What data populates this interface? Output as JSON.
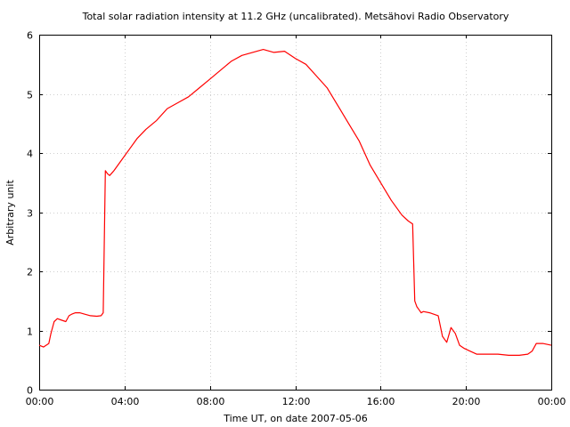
{
  "chart_data": {
    "type": "line",
    "title": "Total solar radiation intensity at 11.2 GHz (uncalibrated). Metsähovi Radio Observatory",
    "xlabel": "Time UT, on date 2007-05-06",
    "ylabel": "Arbitrary unit",
    "xlim": [
      0,
      24
    ],
    "ylim": [
      0,
      6
    ],
    "x_ticks": [
      "00:00",
      "04:00",
      "08:00",
      "12:00",
      "16:00",
      "20:00",
      "00:00"
    ],
    "y_ticks": [
      "0",
      "1",
      "2",
      "3",
      "4",
      "5",
      "6"
    ],
    "grid": true,
    "colors": {
      "series": "#ff0000",
      "frame": "#000000",
      "grid": "#cfcfcf"
    },
    "series": [
      {
        "x": [
          0.0,
          0.2,
          0.45,
          0.55,
          0.7,
          0.85,
          1.0,
          1.25,
          1.4,
          1.55,
          1.7,
          1.9,
          2.1,
          2.4,
          2.7,
          2.9,
          3.0,
          3.1,
          3.2,
          3.3,
          3.5,
          3.8,
          4.2,
          4.6,
          5.0,
          5.5,
          6.0,
          6.5,
          7.0,
          7.5,
          8.0,
          8.5,
          9.0,
          9.5,
          10.0,
          10.5,
          11.0,
          11.5,
          12.0,
          12.5,
          13.0,
          13.5,
          14.0,
          14.5,
          15.0,
          15.5,
          16.0,
          16.5,
          17.0,
          17.3,
          17.5,
          17.6,
          17.7,
          17.8,
          17.9,
          18.0,
          18.3,
          18.7,
          18.9,
          19.1,
          19.3,
          19.5,
          19.7,
          19.9,
          20.2,
          20.5,
          21.0,
          21.5,
          22.0,
          22.5,
          22.9,
          23.1,
          23.3,
          23.6,
          24.0
        ],
        "y": [
          0.75,
          0.72,
          0.78,
          0.95,
          1.15,
          1.2,
          1.18,
          1.15,
          1.25,
          1.28,
          1.3,
          1.3,
          1.28,
          1.25,
          1.24,
          1.25,
          1.3,
          3.7,
          3.65,
          3.62,
          3.7,
          3.85,
          4.05,
          4.25,
          4.4,
          4.55,
          4.75,
          4.85,
          4.95,
          5.1,
          5.25,
          5.4,
          5.55,
          5.65,
          5.7,
          5.75,
          5.7,
          5.72,
          5.6,
          5.5,
          5.3,
          5.1,
          4.8,
          4.5,
          4.2,
          3.8,
          3.5,
          3.2,
          2.95,
          2.85,
          2.8,
          1.5,
          1.4,
          1.35,
          1.3,
          1.32,
          1.3,
          1.25,
          0.9,
          0.8,
          1.05,
          0.95,
          0.75,
          0.7,
          0.65,
          0.6,
          0.6,
          0.6,
          0.58,
          0.58,
          0.6,
          0.65,
          0.78,
          0.78,
          0.75
        ]
      }
    ]
  }
}
